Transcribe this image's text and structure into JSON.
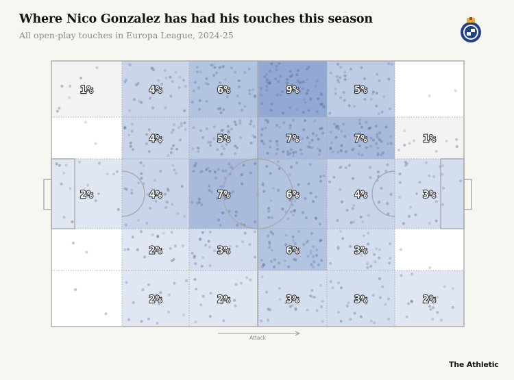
{
  "title": "Where Nico Gonzalez has had his touches this season",
  "subtitle": "All open-play touches in Europa League, 2024-25",
  "brand": "The Athletic",
  "colors": {
    "background": "#f7f7f2",
    "heat": "#5b7fbf",
    "line": "#a9a9a9",
    "dot": "#4a5a78"
  },
  "chart_data": {
    "type": "heatmap",
    "title": "Where Nico Gonzalez has had his touches this season",
    "direction_label": "Attack",
    "columns": 6,
    "rows": 5,
    "cells": [
      [
        1,
        4,
        6,
        9,
        5,
        0
      ],
      [
        0,
        4,
        5,
        7,
        7,
        1
      ],
      [
        2,
        4,
        7,
        6,
        4,
        3
      ],
      [
        0,
        2,
        3,
        6,
        3,
        0
      ],
      [
        0,
        2,
        2,
        3,
        3,
        2
      ]
    ],
    "unit": "%"
  }
}
